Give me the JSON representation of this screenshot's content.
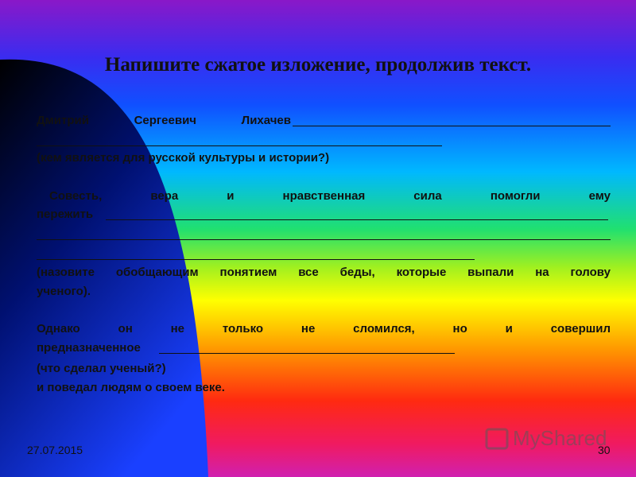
{
  "title": "Напишите сжатое изложение, продолжив текст.",
  "paragraphs": [
    {
      "lines": [
        "Дмитрий Сергеевич Лихачев",
        "(кем является для русской культуры и истории?)"
      ]
    },
    {
      "lines": [
        "Совесть, вера и нравственная сила помогли ему",
        "пережить",
        "(назовите обобщающим понятием все беды, которые выпали на голову",
        "ученого)."
      ]
    },
    {
      "lines": [
        "Однако он не только не сломился, но и совершил",
        "предназначенное",
        "(что сделал ученый?)",
        "и поведал людям о своем веке."
      ]
    }
  ],
  "footer": {
    "date": "27.07.2015",
    "page": "30",
    "watermark": "MyShared"
  }
}
